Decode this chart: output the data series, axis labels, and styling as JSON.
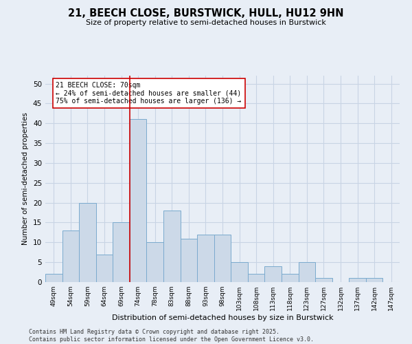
{
  "title_line1": "21, BEECH CLOSE, BURSTWICK, HULL, HU12 9HN",
  "title_line2": "Size of property relative to semi-detached houses in Burstwick",
  "xlabel": "Distribution of semi-detached houses by size in Burstwick",
  "ylabel": "Number of semi-detached properties",
  "bar_labels": [
    "49sqm",
    "54sqm",
    "59sqm",
    "64sqm",
    "69sqm",
    "74sqm",
    "78sqm",
    "83sqm",
    "88sqm",
    "93sqm",
    "98sqm",
    "103sqm",
    "108sqm",
    "113sqm",
    "118sqm",
    "123sqm",
    "127sqm",
    "132sqm",
    "137sqm",
    "142sqm",
    "147sqm"
  ],
  "bar_values": [
    2,
    13,
    20,
    7,
    15,
    41,
    10,
    18,
    11,
    12,
    12,
    5,
    2,
    4,
    2,
    5,
    1,
    0,
    1,
    1,
    0
  ],
  "bar_color": "#ccd9e8",
  "bar_edge_color": "#7aaace",
  "grid_color": "#c8d4e4",
  "bg_color": "#e8eef6",
  "red_line_index": 4.5,
  "annotation_text": "21 BEECH CLOSE: 70sqm\n← 24% of semi-detached houses are smaller (44)\n75% of semi-detached houses are larger (136) →",
  "annotation_box_color": "#ffffff",
  "annotation_box_edge": "#cc0000",
  "red_line_color": "#cc0000",
  "ylim": [
    0,
    52
  ],
  "yticks": [
    0,
    5,
    10,
    15,
    20,
    25,
    30,
    35,
    40,
    45,
    50
  ],
  "footer_line1": "Contains HM Land Registry data © Crown copyright and database right 2025.",
  "footer_line2": "Contains public sector information licensed under the Open Government Licence v3.0."
}
